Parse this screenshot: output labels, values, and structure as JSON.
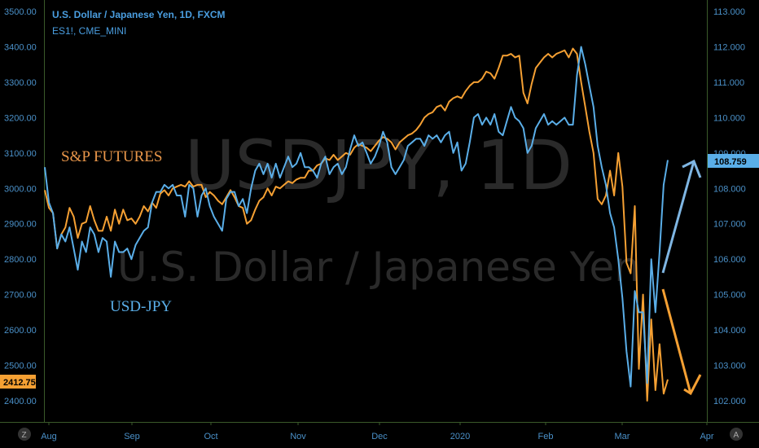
{
  "chart_data": {
    "type": "line",
    "symbol_title": "U.S. Dollar / Japanese Yen, 1D, FXCM",
    "compare_symbol": "ES1!, CME_MINI",
    "watermark_symbol": "USDJPY, 1D",
    "watermark_name": "U.S. Dollar / Japanese Yen",
    "x_ticks": [
      "Aug",
      "Sep",
      "Oct",
      "Nov",
      "Dec",
      "2020",
      "Feb",
      "Mar",
      "Apr"
    ],
    "left_axis": {
      "ticks": [
        "3500.00",
        "3400.00",
        "3300.00",
        "3200.00",
        "3100.00",
        "3000.00",
        "2900.00",
        "2800.00",
        "2700.00",
        "2600.00",
        "2500.00",
        "2400.00"
      ],
      "ylim": [
        2400,
        3500
      ]
    },
    "right_axis": {
      "ticks": [
        "113.000",
        "112.000",
        "111.000",
        "110.000",
        "109.000",
        "108.000",
        "107.000",
        "106.000",
        "105.000",
        "104.000",
        "103.000",
        "102.000"
      ],
      "ylim": [
        102,
        113
      ]
    },
    "annotations": {
      "sp_label": "S&P FUTURES",
      "usd_label": "USD-JPY"
    },
    "last_values": {
      "sp": "2412.75",
      "usd": "108.759"
    },
    "series": [
      {
        "name": "S&P FUTURES",
        "axis": "left",
        "color": "#f5a033",
        "values": [
          2995,
          2945,
          2930,
          2830,
          2870,
          2890,
          2945,
          2920,
          2860,
          2900,
          2905,
          2950,
          2910,
          2880,
          2880,
          2920,
          2880,
          2940,
          2900,
          2940,
          2910,
          2915,
          2900,
          2920,
          2950,
          2935,
          2960,
          2945,
          2985,
          2995,
          2980,
          3000,
          3005,
          3010,
          3005,
          3020,
          3005,
          3010,
          3010,
          2975,
          2990,
          2980,
          2965,
          2955,
          2975,
          2995,
          2975,
          2950,
          2945,
          2900,
          2910,
          2940,
          2965,
          2975,
          3000,
          2980,
          3005,
          3000,
          3010,
          3020,
          3015,
          3025,
          3030,
          3030,
          3050,
          3050,
          3065,
          3070,
          3085,
          3080,
          3095,
          3080,
          3090,
          3100,
          3095,
          3115,
          3125,
          3120,
          3115,
          3105,
          3120,
          3135,
          3145,
          3140,
          3130,
          3110,
          3130,
          3140,
          3150,
          3155,
          3165,
          3180,
          3200,
          3210,
          3215,
          3230,
          3235,
          3220,
          3245,
          3255,
          3260,
          3255,
          3275,
          3290,
          3300,
          3300,
          3310,
          3330,
          3325,
          3310,
          3340,
          3375,
          3375,
          3380,
          3370,
          3375,
          3270,
          3240,
          3295,
          3340,
          3355,
          3370,
          3380,
          3370,
          3380,
          3385,
          3390,
          3370,
          3395,
          3380,
          3300,
          3230,
          3160,
          3100,
          2970,
          2955,
          2980,
          3050,
          2980,
          3100,
          3005,
          2790,
          2760,
          2950,
          2490,
          2700,
          2400,
          2630,
          2430,
          2560,
          2420,
          2460
        ]
      },
      {
        "name": "USD-JPY",
        "axis": "right",
        "color": "#5aaee8",
        "values": [
          108.6,
          107.6,
          107.3,
          106.3,
          106.7,
          106.5,
          106.9,
          106.3,
          105.7,
          106.5,
          106.2,
          106.9,
          106.7,
          106.2,
          106.6,
          106.5,
          105.5,
          106.5,
          106.2,
          106.2,
          106.3,
          106.0,
          106.4,
          106.6,
          106.8,
          106.9,
          107.6,
          107.9,
          107.9,
          108.1,
          108.0,
          108.1,
          107.8,
          107.8,
          107.2,
          108.1,
          108.0,
          107.2,
          107.8,
          108.0,
          107.5,
          107.2,
          107.0,
          106.8,
          107.7,
          107.9,
          107.9,
          107.5,
          107.7,
          107.3,
          108.0,
          108.5,
          108.7,
          108.4,
          108.7,
          108.3,
          108.7,
          108.3,
          108.6,
          108.9,
          108.6,
          108.7,
          109.0,
          108.6,
          108.6,
          108.5,
          108.3,
          108.7,
          108.9,
          108.4,
          108.6,
          108.7,
          108.4,
          108.6,
          109.1,
          109.5,
          109.2,
          109.3,
          109.0,
          108.7,
          108.9,
          109.2,
          109.6,
          109.3,
          108.6,
          108.4,
          108.6,
          108.8,
          109.2,
          109.3,
          109.4,
          109.4,
          109.2,
          109.5,
          109.4,
          109.5,
          109.3,
          109.5,
          109.6,
          109.0,
          109.3,
          108.5,
          108.7,
          109.3,
          110.0,
          110.1,
          109.8,
          110.0,
          109.8,
          110.1,
          109.6,
          109.5,
          109.9,
          110.3,
          110.0,
          109.9,
          109.7,
          109.0,
          109.2,
          109.7,
          109.9,
          110.1,
          109.8,
          109.9,
          109.8,
          109.9,
          110.0,
          109.8,
          109.8,
          111.2,
          112.0,
          111.5,
          110.9,
          110.3,
          109.2,
          108.6,
          108.1,
          107.3,
          106.9,
          106.0,
          104.9,
          103.4,
          102.4,
          105.1,
          104.5,
          104.5,
          102.5,
          106.0,
          104.5,
          106.2,
          108.1,
          108.8
        ]
      }
    ],
    "grid": false,
    "legend": "top-left"
  }
}
